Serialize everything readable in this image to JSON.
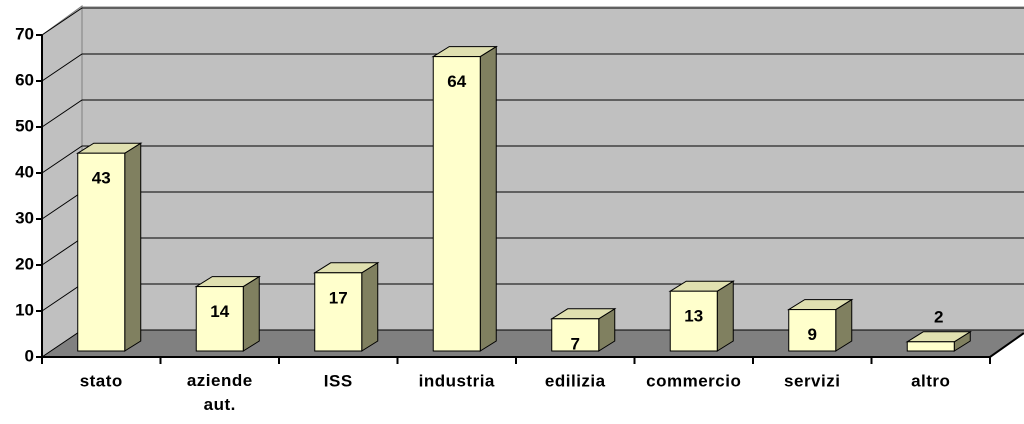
{
  "chart_data": {
    "type": "bar3d",
    "categories": [
      "stato",
      "aziende aut.",
      "ISS",
      "industria",
      "edilizia",
      "commercio",
      "servizi",
      "altro"
    ],
    "values": [
      43,
      14,
      17,
      64,
      7,
      13,
      9,
      2
    ],
    "color": "#ffffcc",
    "ylim": [
      0,
      70
    ],
    "yticks": [
      0,
      10,
      20,
      30,
      40,
      50,
      60,
      70
    ],
    "grid": true
  }
}
